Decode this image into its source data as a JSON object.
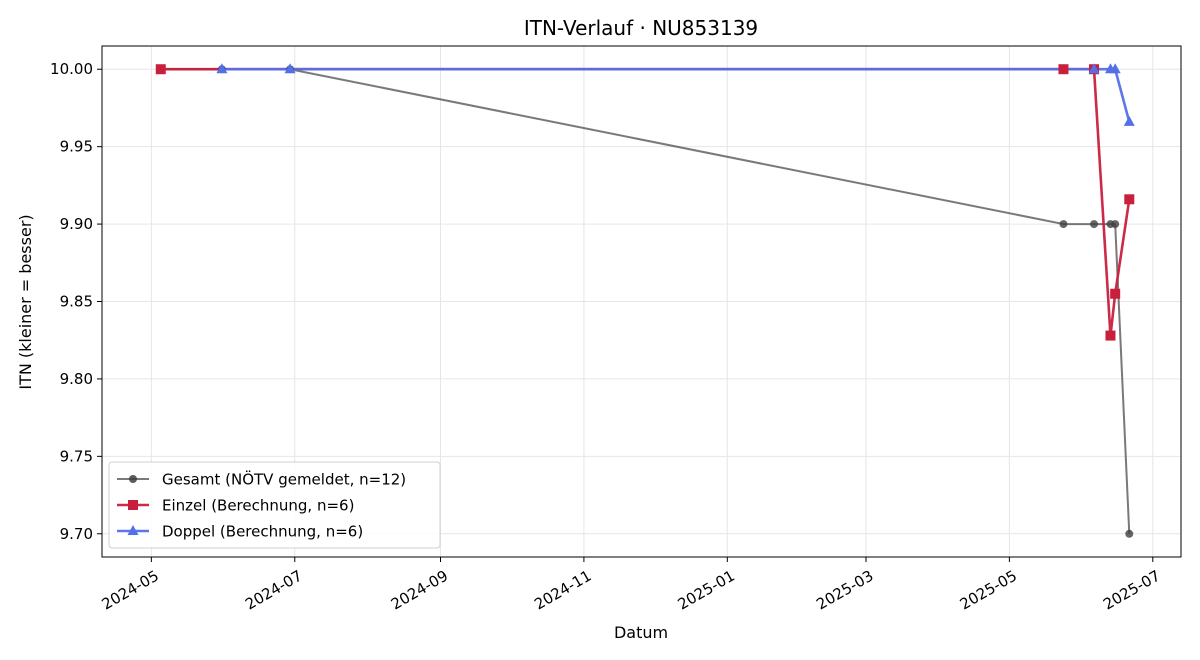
{
  "chart_data": {
    "type": "line",
    "title": "ITN-Verlauf · NU853139",
    "xlabel": "Datum",
    "ylabel": "ITN  (kleiner = besser)",
    "x_type": "date",
    "xlim": [
      "2024-04-10",
      "2025-07-13"
    ],
    "ylim": [
      9.685,
      10.015
    ],
    "x_ticks": [
      "2024-05-01",
      "2024-07-01",
      "2024-09-01",
      "2024-11-01",
      "2025-01-01",
      "2025-03-01",
      "2025-05-01",
      "2025-07-01"
    ],
    "x_tick_labels": [
      "2024-05",
      "2024-07",
      "2024-09",
      "2024-11",
      "2025-01",
      "2025-03",
      "2025-05",
      "2025-07"
    ],
    "y_ticks": [
      9.7,
      9.75,
      9.8,
      9.85,
      9.9,
      9.95,
      10.0
    ],
    "y_tick_labels": [
      "9.70",
      "9.75",
      "9.80",
      "9.85",
      "9.90",
      "9.95",
      "10.00"
    ],
    "grid": true,
    "legend_position": "lower-left",
    "series": [
      {
        "name": "Gesamt (NÖTV gemeldet, n=12)",
        "color": "#404040",
        "marker": "circle",
        "points": [
          {
            "x": "2024-05-05",
            "y": 10.0
          },
          {
            "x": "2024-05-31",
            "y": 10.0
          },
          {
            "x": "2024-06-29",
            "y": 10.0
          },
          {
            "x": "2025-05-24",
            "y": 9.9
          },
          {
            "x": "2025-06-06",
            "y": 9.9
          },
          {
            "x": "2025-06-13",
            "y": 9.9
          },
          {
            "x": "2025-06-15",
            "y": 9.9
          },
          {
            "x": "2025-06-21",
            "y": 9.7
          }
        ]
      },
      {
        "name": "Einzel (Berechnung, n=6)",
        "color": "#c8203c",
        "marker": "square",
        "points": [
          {
            "x": "2024-05-05",
            "y": 10.0
          },
          {
            "x": "2025-05-24",
            "y": 10.0
          },
          {
            "x": "2025-06-06",
            "y": 10.0
          },
          {
            "x": "2025-06-13",
            "y": 9.828
          },
          {
            "x": "2025-06-15",
            "y": 9.855
          },
          {
            "x": "2025-06-21",
            "y": 9.916
          }
        ]
      },
      {
        "name": "Doppel (Berechnung, n=6)",
        "color": "#5470e8",
        "marker": "triangle",
        "points": [
          {
            "x": "2024-05-31",
            "y": 10.0
          },
          {
            "x": "2024-06-29",
            "y": 10.0
          },
          {
            "x": "2025-06-06",
            "y": 10.0
          },
          {
            "x": "2025-06-13",
            "y": 10.0
          },
          {
            "x": "2025-06-15",
            "y": 10.0
          },
          {
            "x": "2025-06-21",
            "y": 9.966
          }
        ]
      }
    ]
  }
}
